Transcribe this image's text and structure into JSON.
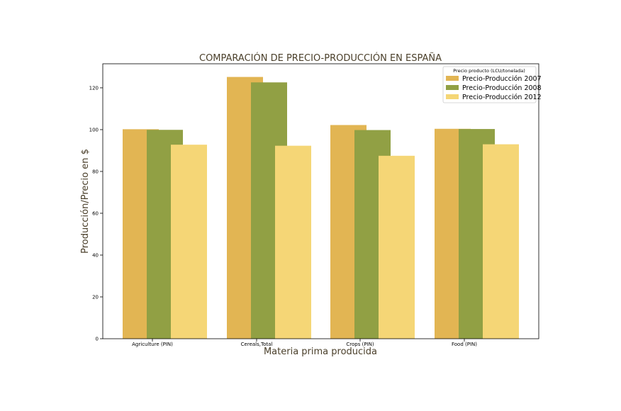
{
  "chart_data": {
    "type": "bar",
    "title": "COMPARACIÓN DE PRECIO-PRODUCCIÓN EN ESPAÑA",
    "xlabel": "Materia prima producida",
    "ylabel": "Producción/Precio en $",
    "categories": [
      "Agriculture (PIN)",
      "Cereals,Total",
      "Crops (PIN)",
      "Food (PIN)"
    ],
    "series": [
      {
        "name": "Precio-Producción 2007",
        "values": [
          100.2,
          125.2,
          102.2,
          100.4
        ],
        "color": "#e2b553"
      },
      {
        "name": "Precio-Producción 2008",
        "values": [
          99.9,
          122.6,
          99.8,
          100.3
        ],
        "color": "#91a044"
      },
      {
        "name": "Precio-Producción 2012",
        "values": [
          92.8,
          92.3,
          87.5,
          93.0
        ],
        "color": "#f5d676"
      }
    ],
    "ylim": [
      0,
      131.5
    ],
    "yticks": [
      0,
      20,
      40,
      60,
      80,
      100,
      120
    ],
    "legend": {
      "title": "Precio producto (LCU/tonelada)",
      "position": "top-right"
    },
    "grid": false
  }
}
